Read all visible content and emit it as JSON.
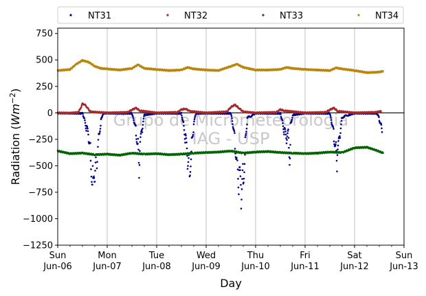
{
  "chart_data": {
    "type": "scatter",
    "title": "",
    "xlabel": "Day",
    "ylabel": "Radiation (Wm⁻²)",
    "ylabel_parts": {
      "prefix": "Radiation (",
      "unit": "Wm",
      "exponent": "−2",
      "suffix": ")"
    },
    "xlim": [
      "2021-06-06",
      "2021-06-13"
    ],
    "ylim": [
      -1250,
      800
    ],
    "yticks": [
      750,
      500,
      250,
      0,
      -250,
      -500,
      -750,
      -1000,
      -1250
    ],
    "xticks": [
      {
        "date": "2021-06-06",
        "day": "Sun",
        "label": "Jun-06"
      },
      {
        "date": "2021-06-07",
        "day": "Mon",
        "label": "Jun-07"
      },
      {
        "date": "2021-06-08",
        "day": "Tue",
        "label": "Jun-08"
      },
      {
        "date": "2021-06-09",
        "day": "Wed",
        "label": "Jun-09"
      },
      {
        "date": "2021-06-10",
        "day": "Thu",
        "label": "Jun-10"
      },
      {
        "date": "2021-06-11",
        "day": "Fri",
        "label": "Jun-11"
      },
      {
        "date": "2021-06-12",
        "day": "Sat",
        "label": "Jun-12"
      },
      {
        "date": "2021-06-13",
        "day": "Sun",
        "label": "Jun-13"
      }
    ],
    "grid": "vertical",
    "zero_line": true,
    "legend": "top",
    "watermark": [
      "Grupo de Micrometeorologia",
      "IAG - USP"
    ],
    "series": [
      {
        "name": "NT31",
        "color": "#00008b",
        "points": [
          [
            "2021-06-06 00:00",
            -2
          ],
          [
            "2021-06-06 06:00",
            -3
          ],
          [
            "2021-06-06 12:00",
            -5
          ],
          [
            "2021-06-06 13:00",
            -60
          ],
          [
            "2021-06-06 14:00",
            -150
          ],
          [
            "2021-06-06 15:00",
            -230
          ],
          [
            "2021-06-06 16:00",
            -400
          ],
          [
            "2021-06-06 17:00",
            -650
          ],
          [
            "2021-06-06 17:20",
            -820
          ],
          [
            "2021-06-06 18:00",
            -700
          ],
          [
            "2021-06-06 19:00",
            -420
          ],
          [
            "2021-06-06 20:00",
            -200
          ],
          [
            "2021-06-06 21:00",
            -80
          ],
          [
            "2021-06-06 22:00",
            -5
          ],
          [
            "2021-06-07 00:00",
            -3
          ],
          [
            "2021-06-07 08:00",
            -4
          ],
          [
            "2021-06-07 12:00",
            -5
          ],
          [
            "2021-06-07 13:00",
            -80
          ],
          [
            "2021-06-07 14:00",
            -180
          ],
          [
            "2021-06-07 15:00",
            -300
          ],
          [
            "2021-06-07 15:40",
            -640
          ],
          [
            "2021-06-07 16:00",
            -320
          ],
          [
            "2021-06-07 17:00",
            -150
          ],
          [
            "2021-06-07 18:00",
            -20
          ],
          [
            "2021-06-08 00:00",
            -3
          ],
          [
            "2021-06-08 08:00",
            -4
          ],
          [
            "2021-06-08 12:00",
            -5
          ],
          [
            "2021-06-08 13:00",
            -100
          ],
          [
            "2021-06-08 14:00",
            -250
          ],
          [
            "2021-06-08 15:00",
            -450
          ],
          [
            "2021-06-08 16:00",
            -520
          ],
          [
            "2021-06-08 17:00",
            -300
          ],
          [
            "2021-06-08 18:00",
            -120
          ],
          [
            "2021-06-08 19:00",
            -5
          ],
          [
            "2021-06-09 00:00",
            -3
          ],
          [
            "2021-06-09 08:00",
            -4
          ],
          [
            "2021-06-09 12:00",
            -5
          ],
          [
            "2021-06-09 13:00",
            -120
          ],
          [
            "2021-06-09 14:00",
            -280
          ],
          [
            "2021-06-09 15:00",
            -450
          ],
          [
            "2021-06-09 16:00",
            -650
          ],
          [
            "2021-06-09 17:00",
            -750
          ],
          [
            "2021-06-09 18:00",
            -600
          ],
          [
            "2021-06-09 19:00",
            -300
          ],
          [
            "2021-06-09 20:00",
            -50
          ],
          [
            "2021-06-10 00:00",
            -3
          ],
          [
            "2021-06-10 12:00",
            -5
          ],
          [
            "2021-06-10 13:00",
            -80
          ],
          [
            "2021-06-10 14:00",
            -180
          ],
          [
            "2021-06-10 15:00",
            -250
          ],
          [
            "2021-06-10 16:00",
            -200
          ],
          [
            "2021-06-10 16:40",
            -470
          ],
          [
            "2021-06-10 17:00",
            -120
          ],
          [
            "2021-06-10 18:00",
            -20
          ],
          [
            "2021-06-11 00:00",
            -3
          ],
          [
            "2021-06-11 12:00",
            -5
          ],
          [
            "2021-06-11 13:00",
            -100
          ],
          [
            "2021-06-11 14:00",
            -220
          ],
          [
            "2021-06-11 15:00",
            -320
          ],
          [
            "2021-06-11 15:40",
            -530
          ],
          [
            "2021-06-11 16:00",
            -380
          ],
          [
            "2021-06-11 17:00",
            -200
          ],
          [
            "2021-06-11 18:00",
            -40
          ],
          [
            "2021-06-12 00:00",
            -3
          ],
          [
            "2021-06-12 08:00",
            -4
          ],
          [
            "2021-06-12 11:00",
            -5
          ],
          [
            "2021-06-12 12:00",
            -60
          ],
          [
            "2021-06-12 13:00",
            -120
          ],
          [
            "2021-06-12 13:30",
            -180
          ]
        ]
      },
      {
        "name": "NT32",
        "color": "#a52a2a",
        "points": [
          [
            "2021-06-06 00:00",
            0
          ],
          [
            "2021-06-06 06:00",
            -2
          ],
          [
            "2021-06-06 10:00",
            5
          ],
          [
            "2021-06-06 11:00",
            40
          ],
          [
            "2021-06-06 12:00",
            85
          ],
          [
            "2021-06-06 13:00",
            80
          ],
          [
            "2021-06-06 14:00",
            60
          ],
          [
            "2021-06-06 15:00",
            30
          ],
          [
            "2021-06-06 16:00",
            10
          ],
          [
            "2021-06-07 00:00",
            0
          ],
          [
            "2021-06-07 10:00",
            5
          ],
          [
            "2021-06-07 12:00",
            30
          ],
          [
            "2021-06-07 14:00",
            45
          ],
          [
            "2021-06-07 16:00",
            20
          ],
          [
            "2021-06-08 00:00",
            0
          ],
          [
            "2021-06-08 10:00",
            5
          ],
          [
            "2021-06-08 12:00",
            30
          ],
          [
            "2021-06-08 14:00",
            40
          ],
          [
            "2021-06-08 16:00",
            15
          ],
          [
            "2021-06-09 00:00",
            0
          ],
          [
            "2021-06-09 10:00",
            10
          ],
          [
            "2021-06-09 12:00",
            55
          ],
          [
            "2021-06-09 14:00",
            75
          ],
          [
            "2021-06-09 16:00",
            45
          ],
          [
            "2021-06-09 18:00",
            10
          ],
          [
            "2021-06-10 00:00",
            0
          ],
          [
            "2021-06-10 10:00",
            5
          ],
          [
            "2021-06-10 12:00",
            30
          ],
          [
            "2021-06-10 14:00",
            20
          ],
          [
            "2021-06-11 00:00",
            0
          ],
          [
            "2021-06-11 10:00",
            5
          ],
          [
            "2021-06-11 12:00",
            30
          ],
          [
            "2021-06-11 14:00",
            45
          ],
          [
            "2021-06-11 16:00",
            15
          ],
          [
            "2021-06-12 00:00",
            0
          ],
          [
            "2021-06-12 10:00",
            5
          ],
          [
            "2021-06-12 13:00",
            15
          ]
        ]
      },
      {
        "name": "NT33",
        "color": "#006400",
        "points": [
          [
            "2021-06-06 00:00",
            -360
          ],
          [
            "2021-06-06 06:00",
            -385
          ],
          [
            "2021-06-06 12:00",
            -380
          ],
          [
            "2021-06-06 18:00",
            -395
          ],
          [
            "2021-06-07 00:00",
            -390
          ],
          [
            "2021-06-07 06:00",
            -400
          ],
          [
            "2021-06-07 12:00",
            -380
          ],
          [
            "2021-06-07 18:00",
            -390
          ],
          [
            "2021-06-08 00:00",
            -385
          ],
          [
            "2021-06-08 06:00",
            -395
          ],
          [
            "2021-06-08 12:00",
            -390
          ],
          [
            "2021-06-08 18:00",
            -380
          ],
          [
            "2021-06-09 00:00",
            -375
          ],
          [
            "2021-06-09 06:00",
            -370
          ],
          [
            "2021-06-09 12:00",
            -360
          ],
          [
            "2021-06-09 18:00",
            -380
          ],
          [
            "2021-06-10 00:00",
            -370
          ],
          [
            "2021-06-10 06:00",
            -365
          ],
          [
            "2021-06-10 12:00",
            -375
          ],
          [
            "2021-06-10 18:00",
            -380
          ],
          [
            "2021-06-11 00:00",
            -385
          ],
          [
            "2021-06-11 06:00",
            -380
          ],
          [
            "2021-06-11 12:00",
            -370
          ],
          [
            "2021-06-11 18:00",
            -375
          ],
          [
            "2021-06-12 00:00",
            -330
          ],
          [
            "2021-06-12 06:00",
            -325
          ],
          [
            "2021-06-12 10:00",
            -350
          ],
          [
            "2021-06-12 14:00",
            -380
          ]
        ]
      },
      {
        "name": "NT34",
        "color": "#b8860b",
        "points": [
          [
            "2021-06-06 00:00",
            400
          ],
          [
            "2021-06-06 06:00",
            410
          ],
          [
            "2021-06-06 09:00",
            460
          ],
          [
            "2021-06-06 12:00",
            495
          ],
          [
            "2021-06-06 15:00",
            480
          ],
          [
            "2021-06-06 18:00",
            440
          ],
          [
            "2021-06-06 21:00",
            420
          ],
          [
            "2021-06-07 00:00",
            415
          ],
          [
            "2021-06-07 06:00",
            405
          ],
          [
            "2021-06-07 12:00",
            420
          ],
          [
            "2021-06-07 15:00",
            455
          ],
          [
            "2021-06-07 18:00",
            420
          ],
          [
            "2021-06-08 00:00",
            410
          ],
          [
            "2021-06-08 06:00",
            400
          ],
          [
            "2021-06-08 12:00",
            405
          ],
          [
            "2021-06-08 15:00",
            430
          ],
          [
            "2021-06-08 18:00",
            415
          ],
          [
            "2021-06-09 00:00",
            405
          ],
          [
            "2021-06-09 06:00",
            400
          ],
          [
            "2021-06-09 12:00",
            440
          ],
          [
            "2021-06-09 15:00",
            460
          ],
          [
            "2021-06-09 18:00",
            430
          ],
          [
            "2021-06-10 00:00",
            405
          ],
          [
            "2021-06-10 06:00",
            405
          ],
          [
            "2021-06-10 12:00",
            410
          ],
          [
            "2021-06-10 15:00",
            430
          ],
          [
            "2021-06-10 18:00",
            420
          ],
          [
            "2021-06-11 00:00",
            410
          ],
          [
            "2021-06-11 06:00",
            405
          ],
          [
            "2021-06-11 12:00",
            400
          ],
          [
            "2021-06-11 15:00",
            425
          ],
          [
            "2021-06-11 18:00",
            415
          ],
          [
            "2021-06-12 00:00",
            400
          ],
          [
            "2021-06-12 06:00",
            380
          ],
          [
            "2021-06-12 12:00",
            385
          ],
          [
            "2021-06-12 14:00",
            395
          ]
        ]
      }
    ]
  }
}
